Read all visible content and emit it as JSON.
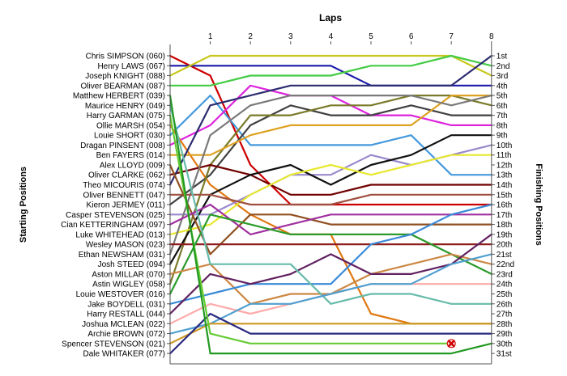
{
  "chart_data": {
    "type": "line",
    "title": "Laps",
    "ylabel_left": "Starting Positions",
    "ylabel_right": "Finishing Positions",
    "laps": [
      0,
      1,
      2,
      3,
      4,
      5,
      6,
      7,
      8
    ],
    "lap_tick_labels": [
      "1",
      "2",
      "3",
      "4",
      "5",
      "6",
      "7",
      "8"
    ],
    "finishing_labels": [
      "1st",
      "2nd",
      "3rd",
      "4th",
      "5th",
      "6th",
      "7th",
      "8th",
      "9th",
      "10th",
      "11th",
      "12th",
      "13th",
      "14th",
      "15th",
      "16th",
      "17th",
      "18th",
      "19th",
      "20th",
      "21st",
      "22nd",
      "23rd",
      "24th",
      "25th",
      "26th",
      "27th",
      "28th",
      "29th",
      "30th",
      "31st"
    ],
    "grid": false,
    "retirement_marker": {
      "driver": "Spencer STEVENSON (021)",
      "lap": 7,
      "position": 30
    },
    "series": [
      {
        "name": "Chris SIMPSON (060)",
        "color": "#cc0000",
        "positions": [
          1,
          3,
          12,
          16,
          16,
          16,
          16,
          16,
          16
        ]
      },
      {
        "name": "Henry LAWS (067)",
        "color": "#1a1aaa",
        "positions": [
          2,
          2,
          2,
          2,
          2,
          4,
          4,
          4,
          4
        ]
      },
      {
        "name": "Joseph KNIGHT (088)",
        "color": "#c8c820",
        "positions": [
          3,
          1,
          1,
          1,
          1,
          1,
          1,
          1,
          3
        ]
      },
      {
        "name": "Oliver BEARMAN (087)",
        "color": "#44cc44",
        "positions": [
          4,
          4,
          3,
          3,
          3,
          2,
          2,
          1,
          2
        ]
      },
      {
        "name": "Matthew HERBERT (039)",
        "color": "#4499dd",
        "positions": [
          9,
          5,
          10,
          10,
          10,
          10,
          9,
          13,
          13
        ]
      },
      {
        "name": "Maurice HENRY (049)",
        "color": "#dd22dd",
        "positions": [
          10,
          8,
          4,
          5,
          5,
          7,
          7,
          8,
          8
        ]
      },
      {
        "name": "Harry GARMAN (075)",
        "color": "#e07810",
        "positions": [
          8,
          14,
          17,
          19,
          19,
          27,
          28,
          28,
          28
        ]
      },
      {
        "name": "Ollie MARSH (054)",
        "color": "#404040",
        "positions": [
          16,
          13,
          8,
          6,
          7,
          7,
          6,
          7,
          7
        ]
      },
      {
        "name": "Louie SHORT (030)",
        "color": "#7a7a2a",
        "positions": [
          24,
          12,
          7,
          7,
          6,
          6,
          5,
          5,
          6
        ]
      },
      {
        "name": "Dragan PINSENT (008)",
        "color": "#dda020",
        "positions": [
          11,
          11,
          9,
          8,
          8,
          8,
          8,
          5,
          5
        ]
      },
      {
        "name": "Ben FAYERS (014)",
        "color": "#700000",
        "positions": [
          13,
          12,
          13,
          15,
          15,
          14,
          14,
          14,
          14
        ]
      },
      {
        "name": "Alex LLOYD (009)",
        "color": "#9988cc",
        "positions": [
          17,
          17,
          15,
          13,
          13,
          11,
          12,
          11,
          10
        ]
      },
      {
        "name": "Oliver CLARKE (062)",
        "color": "#111111",
        "positions": [
          22,
          15,
          13,
          12,
          14,
          12,
          11,
          9,
          9
        ]
      },
      {
        "name": "Theo MICOURIS (074)",
        "color": "#e8e830",
        "positions": [
          19,
          18,
          15,
          13,
          12,
          13,
          12,
          11,
          11
        ]
      },
      {
        "name": "Oliver BENNETT (047)",
        "color": "#2c2c70",
        "positions": [
          14,
          6,
          5,
          4,
          4,
          4,
          4,
          4,
          1
        ]
      },
      {
        "name": "Kieron JERMEY (011)",
        "color": "#7a7a7a",
        "positions": [
          21,
          9,
          6,
          5,
          5,
          5,
          5,
          6,
          5
        ]
      },
      {
        "name": "Casper STEVENSON (025)",
        "color": "#a05040",
        "positions": [
          15,
          15,
          16,
          16,
          16,
          15,
          15,
          15,
          15
        ]
      },
      {
        "name": "Cian KETTERINGHAM (097)",
        "color": "#905020",
        "positions": [
          12,
          21,
          17,
          17,
          18,
          18,
          18,
          18,
          18
        ]
      },
      {
        "name": "Luke WHITEHEAD (013)",
        "color": "#a030a0",
        "positions": [
          18,
          16,
          19,
          18,
          17,
          17,
          17,
          17,
          17
        ]
      },
      {
        "name": "Wesley MASON (023)",
        "color": "#902020",
        "positions": [
          20,
          20,
          20,
          20,
          20,
          20,
          20,
          20,
          20
        ]
      },
      {
        "name": "Ethan NEWSHAM (031)",
        "color": "#2a9a2a",
        "positions": [
          25,
          17,
          18,
          19,
          19,
          19,
          19,
          21,
          23
        ]
      },
      {
        "name": "Josh STEED (094)",
        "color": "#cc8844",
        "positions": [
          23,
          22,
          26,
          25,
          25,
          23,
          22,
          21,
          22
        ]
      },
      {
        "name": "Aston MILLAR (070)",
        "color": "#3a8ad8",
        "positions": [
          26,
          25,
          24,
          24,
          24,
          20,
          19,
          17,
          16
        ]
      },
      {
        "name": "Astin WIGLEY (058)",
        "color": "#602060",
        "positions": [
          27,
          23,
          24,
          23,
          21,
          23,
          23,
          22,
          19
        ]
      },
      {
        "name": "Louie WESTOVER (016)",
        "color": "#66bbaa",
        "positions": [
          6,
          22,
          22,
          22,
          26,
          25,
          25,
          26,
          26
        ]
      },
      {
        "name": "Jake BOYDELL (031)",
        "color": "#ffaaaa",
        "positions": [
          28,
          26,
          27,
          26,
          25,
          24,
          24,
          24,
          24
        ]
      },
      {
        "name": "Harry RESTALL (044)",
        "color": "#50a0d0",
        "positions": [
          29,
          28,
          26,
          26,
          25,
          24,
          24,
          22,
          21
        ]
      },
      {
        "name": "Joshua MCLEAN (022)",
        "color": "#cc9922",
        "positions": [
          30,
          28,
          28,
          28,
          28,
          28,
          28,
          28,
          28
        ]
      },
      {
        "name": "Archie BROWN (072)",
        "color": "#2a2a80",
        "positions": [
          31,
          27,
          29,
          29,
          29,
          29,
          29,
          29,
          29
        ]
      },
      {
        "name": "Spencer STEVENSON (021)",
        "color": "#66cc33",
        "positions": [
          7,
          29,
          30,
          30,
          30,
          30,
          30,
          30,
          null
        ]
      },
      {
        "name": "Dale WHITAKER (077)",
        "color": "#229922",
        "positions": [
          5,
          31,
          31,
          31,
          31,
          31,
          31,
          31,
          30
        ]
      }
    ]
  }
}
